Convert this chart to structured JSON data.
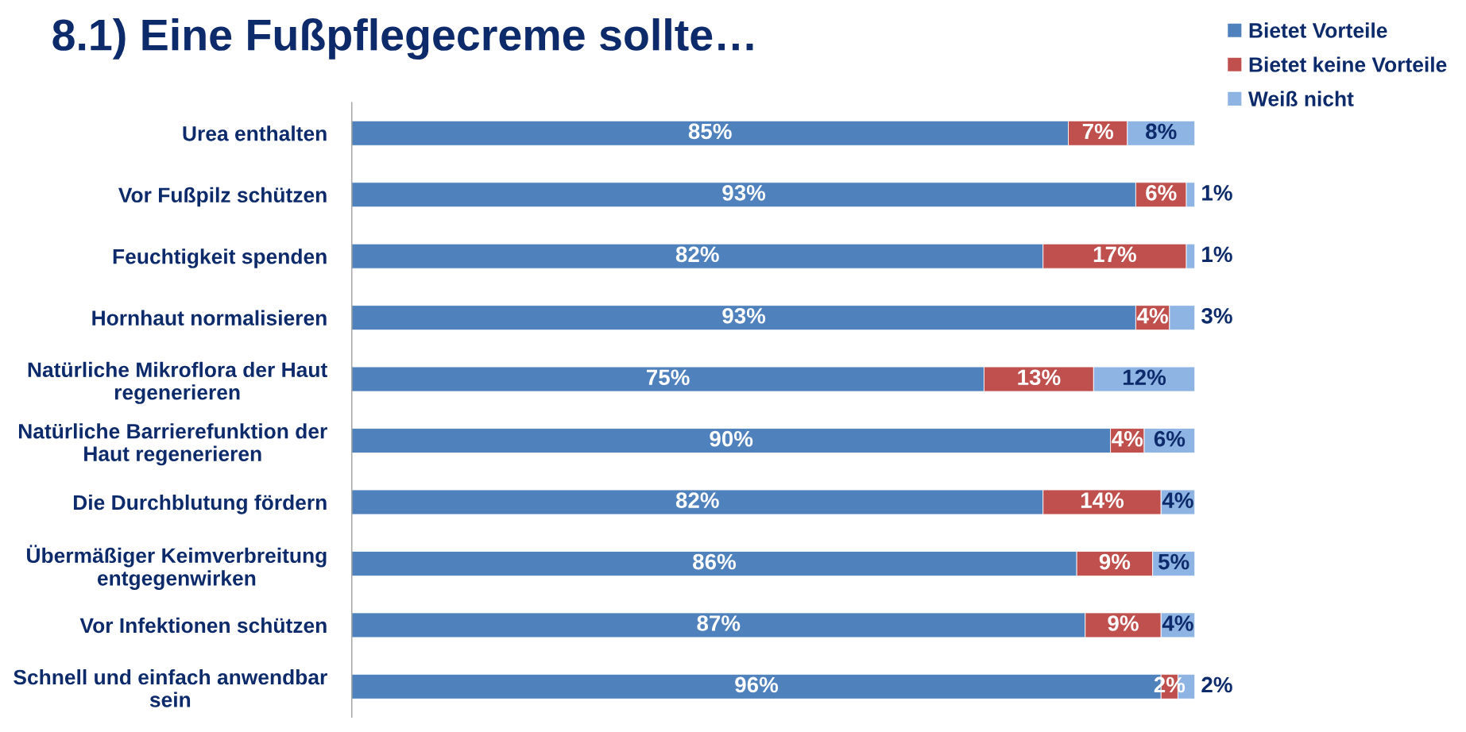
{
  "chart_data": {
    "type": "bar",
    "orientation": "horizontal",
    "stacked": true,
    "legend": "top right",
    "grid": false,
    "title": "8.1) Eine Fußpflegecreme sollte…",
    "categories": [
      "Urea enthalten",
      "Vor Fußpilz schützen",
      "Feuchtigkeit spenden",
      "Hornhaut normalisieren",
      "Natürliche Mikroflora der Haut regenerieren",
      "Natürliche Barrierefunktion der Haut regenerieren",
      "Die Durchblutung fördern",
      "Übermäßiger Keimverbreitung entgegenwirken",
      "Vor Infektionen schützen",
      "Schnell und einfach anwendbar sein"
    ],
    "series": [
      {
        "name": "Bietet Vorteile",
        "color": "#4f81bd",
        "values": [
          85,
          93,
          82,
          93,
          75,
          90,
          82,
          86,
          87,
          96
        ],
        "value_labels": [
          "85%",
          "93%",
          "82%",
          "93%",
          "75%",
          "90%",
          "82%",
          "86%",
          "87%",
          "96%"
        ]
      },
      {
        "name": "Bietet keine Vorteile",
        "color": "#c0504d",
        "values": [
          7,
          6,
          17,
          4,
          13,
          4,
          14,
          9,
          9,
          2
        ],
        "value_labels": [
          "7%",
          "6%",
          "17%",
          "4%",
          "13%",
          "4%",
          "14%",
          "9%",
          "9%",
          "2%"
        ]
      },
      {
        "name": "Weiß nicht",
        "color": "#8eb4e3",
        "values": [
          8,
          1,
          1,
          3,
          12,
          6,
          4,
          5,
          4,
          2
        ],
        "value_labels": [
          "8%",
          "1%",
          "1%",
          "3%",
          "12%",
          "6%",
          "4%",
          "5%",
          "4%",
          "2%"
        ]
      }
    ]
  }
}
